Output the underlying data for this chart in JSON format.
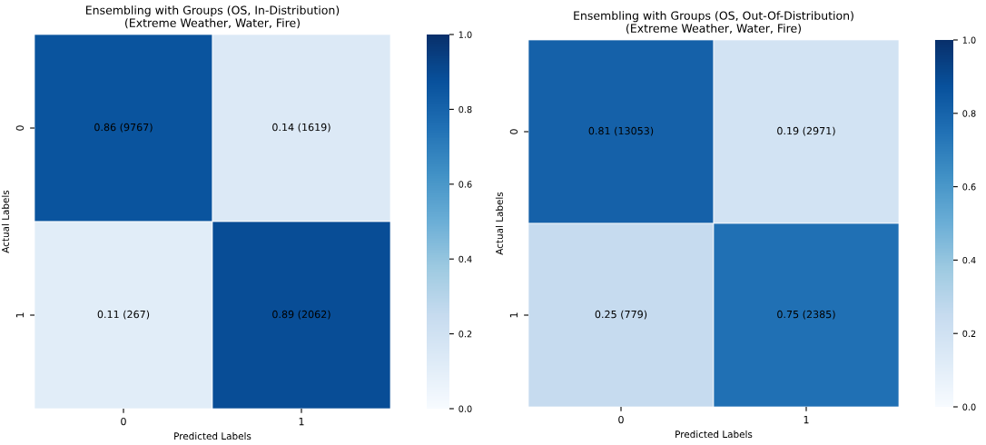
{
  "chart_data": [
    {
      "type": "heatmap",
      "title": "Ensembling with Groups (OS, In-Distribution)\n(Extreme Weather, Water, Fire)",
      "xlabel": "Predicted Labels",
      "ylabel": "Actual Labels",
      "categories": [
        "0",
        "1"
      ],
      "y_categories": [
        "0",
        "1"
      ],
      "cells": [
        [
          0.86,
          0.14
        ],
        [
          0.11,
          0.89
        ]
      ],
      "cell_labels": [
        [
          "0.86 (9767)",
          "0.14 (1619)"
        ],
        [
          "0.11 (267)",
          "0.89 (2062)"
        ]
      ],
      "clim": [
        0,
        1
      ],
      "cticks": [
        {
          "value": 0,
          "label": "0.0"
        },
        {
          "value": 0.2,
          "label": "0.2"
        },
        {
          "value": 0.4,
          "label": "0.4"
        },
        {
          "value": 0.6,
          "label": "0.6"
        },
        {
          "value": 0.8,
          "label": "0.8"
        },
        {
          "value": 1,
          "label": "1.0"
        }
      ]
    },
    {
      "type": "heatmap",
      "title": "Ensembling with Groups (OS, Out-Of-Distribution)\n(Extreme Weather, Water, Fire)",
      "xlabel": "Predicted Labels",
      "ylabel": "Actual Labels",
      "categories": [
        "0",
        "1"
      ],
      "y_categories": [
        "0",
        "1"
      ],
      "cells": [
        [
          0.81,
          0.19
        ],
        [
          0.25,
          0.75
        ]
      ],
      "cell_labels": [
        [
          "0.81 (13053)",
          "0.19 (2971)"
        ],
        [
          "0.25 (779)",
          "0.75 (2385)"
        ]
      ],
      "clim": [
        0,
        1
      ],
      "cticks": [
        {
          "value": 0,
          "label": "0.0"
        },
        {
          "value": 0.2,
          "label": "0.2"
        },
        {
          "value": 0.4,
          "label": "0.4"
        },
        {
          "value": 0.6,
          "label": "0.6"
        },
        {
          "value": 0.8,
          "label": "0.8"
        },
        {
          "value": 1,
          "label": "1.0"
        }
      ]
    }
  ]
}
